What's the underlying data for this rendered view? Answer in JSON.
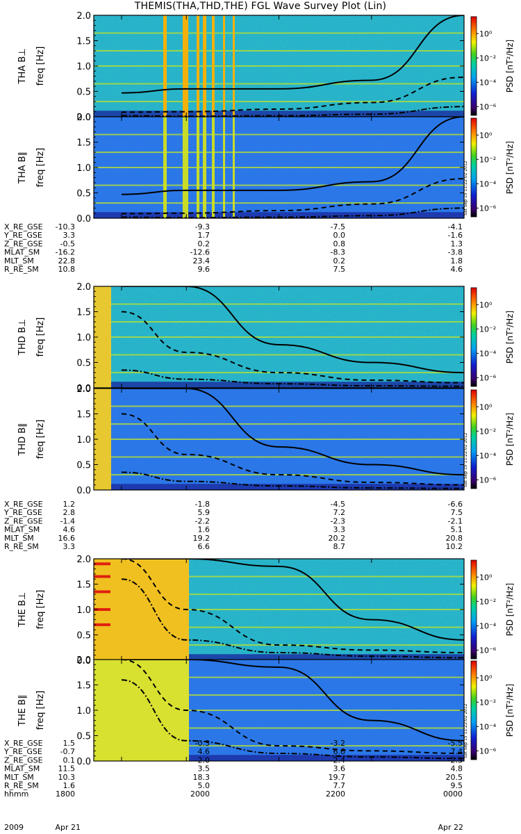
{
  "title": "THEMIS(THA,THD,THE) FGL Wave Survey Plot (Lin)",
  "colorbar_label": "PSD [nT²/Hz]",
  "colorbar_ticks": [
    "10⁰",
    "10⁻²",
    "10⁻⁴",
    "10⁻⁶"
  ],
  "stamp": "Sat Sep 15 11:22:02 2012",
  "chart_data": [
    {
      "type": "heatmap",
      "probe": "THA",
      "component": "B⊥",
      "ylabel_probe": "THA B⊥",
      "ylabel": "freq [Hz]",
      "ylim": [
        0,
        2.0
      ],
      "yticks": [
        "0.0",
        "0.5",
        "1.0",
        "1.5",
        "2.0"
      ],
      "x": [
        0.3,
        1.0,
        2.0,
        3.0,
        4.0
      ],
      "solid": [
        0.47,
        0.55,
        0.55,
        0.72,
        2.0
      ],
      "dashed": [
        0.09,
        0.1,
        0.15,
        0.28,
        0.78
      ],
      "dashdot": [
        0.02,
        0.01,
        0.02,
        0.05,
        0.2
      ],
      "color_scale": "log",
      "clim": [
        "10⁻⁶",
        "10⁰"
      ]
    },
    {
      "type": "heatmap",
      "probe": "THA",
      "component": "B∥",
      "ylabel_probe": "THA B∥",
      "ylabel": "freq [Hz]",
      "ylim": [
        0,
        2.0
      ],
      "yticks": [
        "0.0",
        "0.5",
        "1.0",
        "1.5",
        "2.0"
      ],
      "x": [
        0.3,
        1.0,
        2.0,
        3.0,
        4.0
      ],
      "solid": [
        0.47,
        0.55,
        0.55,
        0.72,
        2.0
      ],
      "dashed": [
        0.09,
        0.1,
        0.15,
        0.28,
        0.78
      ],
      "dashdot": [
        0.02,
        0.01,
        0.02,
        0.05,
        0.2
      ]
    },
    {
      "type": "heatmap",
      "probe": "THD",
      "component": "B⊥",
      "ylabel_probe": "THD B⊥",
      "ylabel": "freq [Hz]",
      "ylim": [
        0,
        2.0
      ],
      "yticks": [
        "0.0",
        "0.5",
        "1.0",
        "1.5",
        "2.0"
      ],
      "x": [
        0.3,
        1.0,
        2.0,
        3.0,
        4.0
      ],
      "solid": [
        2.0,
        2.0,
        0.85,
        0.5,
        0.3
      ],
      "dashed": [
        1.5,
        0.7,
        0.3,
        0.15,
        0.1
      ],
      "dashdot": [
        0.35,
        0.17,
        0.08,
        0.04,
        0.03
      ]
    },
    {
      "type": "heatmap",
      "probe": "THD",
      "component": "B∥",
      "ylabel_probe": "THD B∥",
      "ylabel": "freq [Hz]",
      "ylim": [
        0,
        2.0
      ],
      "yticks": [
        "0.0",
        "0.5",
        "1.0",
        "1.5",
        "2.0"
      ],
      "x": [
        0.3,
        1.0,
        2.0,
        3.0,
        4.0
      ],
      "solid": [
        2.0,
        2.0,
        0.85,
        0.5,
        0.3
      ],
      "dashed": [
        1.5,
        0.7,
        0.3,
        0.15,
        0.1
      ],
      "dashdot": [
        0.35,
        0.17,
        0.08,
        0.04,
        0.03
      ]
    },
    {
      "type": "heatmap",
      "probe": "THE",
      "component": "B⊥",
      "ylabel_probe": "THE B⊥",
      "ylabel": "freq [Hz]",
      "ylim": [
        0,
        2.0
      ],
      "yticks": [
        "0.0",
        "0.5",
        "1.0",
        "1.5",
        "2.0"
      ],
      "x": [
        0.3,
        1.0,
        2.0,
        3.0,
        4.0
      ],
      "solid": [
        2.0,
        2.0,
        1.85,
        0.8,
        0.4
      ],
      "dashed": [
        2.0,
        1.0,
        0.3,
        0.2,
        0.15
      ],
      "dashdot": [
        1.6,
        0.4,
        0.15,
        0.08,
        0.05
      ]
    },
    {
      "type": "heatmap",
      "probe": "THE",
      "component": "B∥",
      "ylabel_probe": "THE B∥",
      "ylabel": "freq [Hz]",
      "ylim": [
        0,
        2.0
      ],
      "yticks": [
        "0.0",
        "0.5",
        "1.0",
        "1.5",
        "2.0"
      ],
      "x": [
        0.3,
        1.0,
        2.0,
        3.0,
        4.0
      ],
      "solid": [
        2.0,
        2.0,
        1.85,
        0.8,
        0.4
      ],
      "dashed": [
        2.0,
        1.0,
        0.3,
        0.2,
        0.15
      ],
      "dashdot": [
        1.6,
        0.4,
        0.15,
        0.08,
        0.05
      ]
    }
  ],
  "ephemeris": [
    {
      "rows": [
        {
          "label": "X_RE_GSE",
          "values": [
            "-10.3",
            "-9.3",
            "-7.5",
            "-4.1"
          ]
        },
        {
          "label": "Y_RE_GSE",
          "values": [
            "3.3",
            "1.7",
            "0.0",
            "-1.6"
          ]
        },
        {
          "label": "Z_RE_GSE",
          "values": [
            "-0.5",
            "0.2",
            "0.8",
            "1.3"
          ]
        },
        {
          "label": "MLAT_SM",
          "values": [
            "-16.2",
            "-12.6",
            "-8.3",
            "-3.8"
          ]
        },
        {
          "label": "MLT_SM",
          "values": [
            "22.8",
            "23.4",
            "0.2",
            "1.8"
          ]
        },
        {
          "label": "R_RE_SM",
          "values": [
            "10.8",
            "9.6",
            "7.5",
            "4.6"
          ]
        }
      ]
    },
    {
      "rows": [
        {
          "label": "X_RE_GSE",
          "values": [
            "1.2",
            "-1.8",
            "-4.5",
            "-6.6"
          ]
        },
        {
          "label": "Y_RE_GSE",
          "values": [
            "2.8",
            "5.9",
            "7.2",
            "7.5"
          ]
        },
        {
          "label": "Z_RE_GSE",
          "values": [
            "-1.4",
            "-2.2",
            "-2.3",
            "-2.1"
          ]
        },
        {
          "label": "MLAT_SM",
          "values": [
            "4.6",
            "1.6",
            "3.3",
            "5.1"
          ]
        },
        {
          "label": "MLT_SM",
          "values": [
            "16.6",
            "19.2",
            "20.2",
            "20.8"
          ]
        },
        {
          "label": "R_RE_SM",
          "values": [
            "3.3",
            "6.6",
            "8.7",
            "10.2"
          ]
        }
      ]
    },
    {
      "rows": [
        {
          "label": "X_RE_GSE",
          "values": [
            "1.5",
            "-0.3",
            "-3.2",
            "-5.5"
          ]
        },
        {
          "label": "Y_RE_GSE",
          "values": [
            "-0.7",
            "4.6",
            "6.6",
            "7.4"
          ]
        },
        {
          "label": "Z_RE_GSE",
          "values": [
            "0.1",
            "-2.0",
            "-2.4",
            "-2.3"
          ]
        },
        {
          "label": "MLAT_SM",
          "values": [
            "11.5",
            "3.5",
            "3.6",
            "4.8"
          ]
        },
        {
          "label": "MLT_SM",
          "values": [
            "10.3",
            "18.3",
            "19.7",
            "20.5"
          ]
        },
        {
          "label": "R_RE_SM",
          "values": [
            "1.6",
            "5.0",
            "7.7",
            "9.5"
          ]
        },
        {
          "label": "hhmm",
          "values": [
            "1800",
            "2000",
            "2200",
            "0000"
          ]
        }
      ]
    }
  ],
  "date_labels": [
    "2009",
    "Apr 21",
    "Apr 22"
  ]
}
